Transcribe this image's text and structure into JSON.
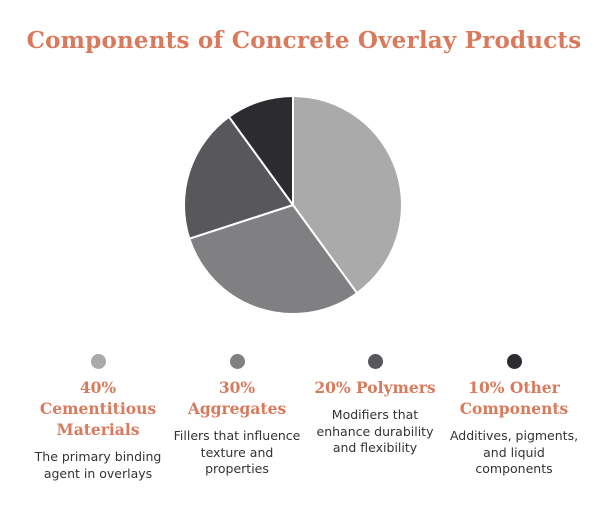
{
  "title": "Components of Concrete Overlay Products",
  "chart_data": {
    "type": "pie",
    "title": "Components of Concrete Overlay Products",
    "slices": [
      {
        "label": "Cementitious Materials",
        "value": 40,
        "color": "#aaaaaa",
        "display_label": "40% Cementitious Materials",
        "description": "The primary binding agent in overlays"
      },
      {
        "label": "Aggregates",
        "value": 30,
        "color": "#808083",
        "display_label": "30% Aggregates",
        "description": "Fillers that influence texture and properties"
      },
      {
        "label": "Polymers",
        "value": 20,
        "color": "#57575c",
        "display_label": "20% Polymers",
        "description": "Modifiers that enhance durability and flexibility"
      },
      {
        "label": "Other Components",
        "value": 10,
        "color": "#2b2b30",
        "display_label": "10% Other Components",
        "description": "Additives, pigments, and liquid components"
      }
    ],
    "start_angle": "top",
    "direction": "clockwise",
    "legend_position": "bottom"
  }
}
